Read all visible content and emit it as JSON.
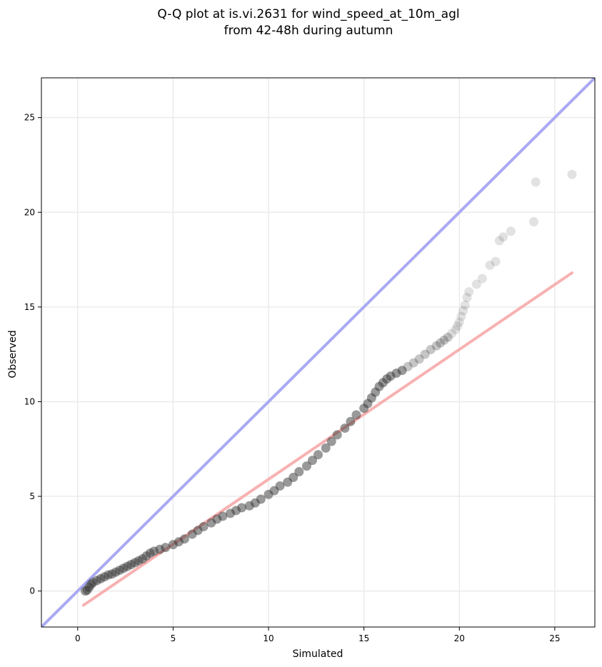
{
  "chart_data": {
    "type": "scatter",
    "title_line1": "Q-Q plot at is.vi.2631 for wind_speed_at_10m_agl",
    "title_line2": "from 42-48h during autumn",
    "xlabel": "Simulated",
    "ylabel": "Observed",
    "xlim": [
      -1.9,
      27.1
    ],
    "ylim": [
      -1.9,
      27.1
    ],
    "xticks": [
      0,
      5,
      10,
      15,
      20,
      25
    ],
    "yticks": [
      0,
      5,
      10,
      15,
      20,
      25
    ],
    "grid": true,
    "colors": {
      "points": "#333333",
      "identity_line": "#a9a9f3",
      "fit_line": "#f7a9a9",
      "grid": "#ebebeb"
    },
    "identity_line": {
      "x": [
        -1.9,
        27.1
      ],
      "y": [
        -1.9,
        27.1
      ]
    },
    "fit_line": {
      "x": [
        0.3,
        25.9
      ],
      "y": [
        -0.75,
        16.8
      ]
    },
    "series": [
      {
        "x": [
          0.4,
          0.5,
          0.6,
          0.7,
          0.8,
          1.0,
          1.2,
          1.4,
          1.6,
          1.8,
          2.0,
          2.2,
          2.4,
          2.6,
          2.8,
          3.0,
          3.2,
          3.4,
          3.6,
          3.8,
          4.0,
          4.3,
          4.6,
          5.0,
          5.3,
          5.6,
          6.0,
          6.3,
          6.6,
          7.0,
          7.3,
          7.6,
          8.0,
          8.3,
          8.6,
          9.0,
          9.3,
          9.6,
          10.0,
          10.3,
          10.6,
          11.0,
          11.3,
          11.6,
          12.0,
          12.3,
          12.6,
          13.0,
          13.3,
          13.6,
          14.0,
          14.3,
          14.6,
          15.0,
          15.2,
          15.4,
          15.6,
          15.8,
          16.0,
          16.2,
          16.4,
          16.7,
          17.0,
          17.3,
          17.6,
          17.9,
          18.2,
          18.5,
          18.8,
          19.0,
          19.2,
          19.4,
          19.6,
          19.8,
          19.9,
          20.0,
          20.1,
          20.2,
          20.3,
          20.4,
          20.5,
          20.9,
          21.2,
          21.6,
          21.9,
          22.1,
          22.3,
          22.7,
          23.9,
          24.0,
          25.9
        ],
        "y": [
          0.0,
          0.05,
          0.2,
          0.35,
          0.45,
          0.55,
          0.65,
          0.75,
          0.85,
          0.9,
          1.0,
          1.1,
          1.2,
          1.3,
          1.4,
          1.5,
          1.6,
          1.7,
          1.85,
          2.0,
          2.1,
          2.2,
          2.3,
          2.45,
          2.6,
          2.75,
          3.0,
          3.2,
          3.4,
          3.6,
          3.8,
          3.95,
          4.1,
          4.25,
          4.4,
          4.5,
          4.65,
          4.85,
          5.1,
          5.3,
          5.55,
          5.75,
          6.0,
          6.3,
          6.6,
          6.9,
          7.2,
          7.55,
          7.9,
          8.25,
          8.6,
          8.95,
          9.3,
          9.65,
          9.9,
          10.2,
          10.5,
          10.8,
          11.0,
          11.2,
          11.35,
          11.5,
          11.65,
          11.85,
          12.05,
          12.25,
          12.5,
          12.75,
          12.95,
          13.1,
          13.25,
          13.4,
          13.6,
          13.8,
          14.0,
          14.2,
          14.5,
          14.8,
          15.1,
          15.5,
          15.8,
          16.2,
          16.5,
          17.2,
          17.4,
          18.5,
          18.7,
          19.0,
          19.5,
          21.6,
          22.0
        ]
      }
    ]
  }
}
